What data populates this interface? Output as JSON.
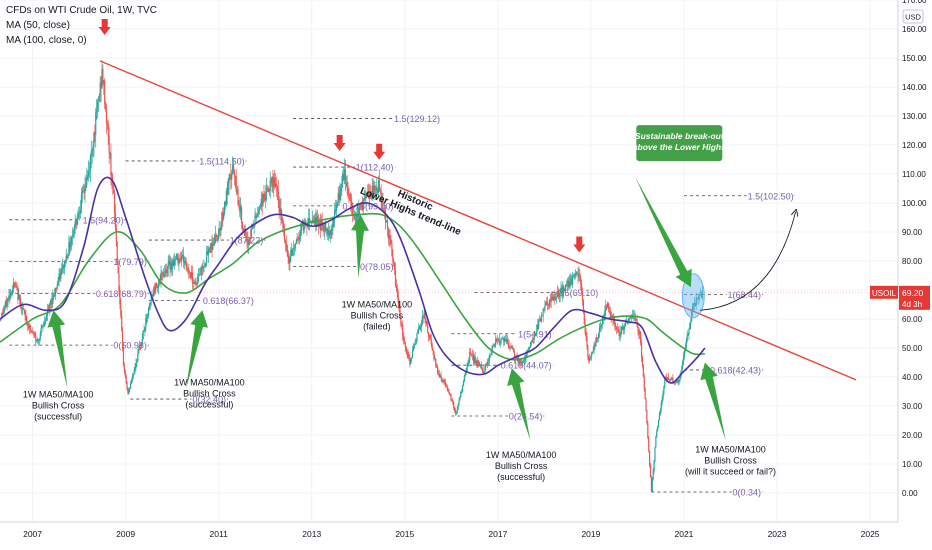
{
  "legend": {
    "title": "CFDs on WTI Crude Oil, 1W, TVC",
    "ma50": "MA (50, close)",
    "ma100": "MA (100, close, 0)"
  },
  "price_axis": {
    "unit_badge": "USD",
    "current_symbol": "USOIL",
    "current_price": "69.20",
    "countdown": "4d 3h"
  },
  "colors": {
    "candle_up": "#26a69a",
    "candle_down": "#ef5350",
    "ma50": "#4a2fa6",
    "ma100": "#3aa540",
    "trendline": "#e8453c",
    "fib": "#7b5fb0",
    "arrow_green": "#3aa540",
    "arrow_red": "#e53935",
    "callout_bg": "#43a047",
    "breakout_ellipse": "#64b5f6"
  },
  "chart_data": {
    "type": "candlestick",
    "title": "CFDs on WTI Crude Oil, 1W, TVC",
    "y_unit": "USD",
    "ylim": [
      -10,
      170
    ],
    "xlim": [
      2006.3,
      2025.6
    ],
    "x_ticks": [
      "2007",
      "2009",
      "2011",
      "2013",
      "2015",
      "2017",
      "2019",
      "2021",
      "2023",
      "2025"
    ],
    "y_ticks": [
      "170.00",
      "160.00",
      "150.00",
      "140.00",
      "130.00",
      "120.00",
      "110.00",
      "100.00",
      "90.00",
      "80.00",
      "70.00",
      "60.00",
      "50.00",
      "40.00",
      "30.00",
      "20.00",
      "10.00",
      "0.00"
    ],
    "price_path": [
      [
        2006.3,
        60
      ],
      [
        2006.6,
        72
      ],
      [
        2006.9,
        58
      ],
      [
        2007.1,
        52
      ],
      [
        2007.4,
        66
      ],
      [
        2007.7,
        80
      ],
      [
        2007.95,
        95
      ],
      [
        2008.2,
        110
      ],
      [
        2008.5,
        145
      ],
      [
        2008.75,
        100
      ],
      [
        2008.95,
        45
      ],
      [
        2009.05,
        34
      ],
      [
        2009.3,
        50
      ],
      [
        2009.6,
        70
      ],
      [
        2009.9,
        78
      ],
      [
        2010.2,
        82
      ],
      [
        2010.5,
        72
      ],
      [
        2010.8,
        84
      ],
      [
        2011.0,
        90
      ],
      [
        2011.3,
        112
      ],
      [
        2011.6,
        85
      ],
      [
        2011.9,
        100
      ],
      [
        2012.2,
        108
      ],
      [
        2012.5,
        80
      ],
      [
        2012.8,
        92
      ],
      [
        2013.0,
        95
      ],
      [
        2013.4,
        90
      ],
      [
        2013.7,
        110
      ],
      [
        2013.9,
        95
      ],
      [
        2014.2,
        102
      ],
      [
        2014.45,
        106
      ],
      [
        2014.7,
        85
      ],
      [
        2014.95,
        55
      ],
      [
        2015.1,
        45
      ],
      [
        2015.4,
        62
      ],
      [
        2015.7,
        42
      ],
      [
        2015.95,
        35
      ],
      [
        2016.1,
        27
      ],
      [
        2016.4,
        48
      ],
      [
        2016.7,
        42
      ],
      [
        2016.95,
        53
      ],
      [
        2017.2,
        52
      ],
      [
        2017.5,
        44
      ],
      [
        2017.8,
        55
      ],
      [
        2018.0,
        64
      ],
      [
        2018.4,
        70
      ],
      [
        2018.75,
        76
      ],
      [
        2018.95,
        45
      ],
      [
        2019.1,
        52
      ],
      [
        2019.35,
        65
      ],
      [
        2019.6,
        55
      ],
      [
        2019.9,
        62
      ],
      [
        2020.05,
        55
      ],
      [
        2020.2,
        25
      ],
      [
        2020.3,
        0.34
      ],
      [
        2020.4,
        20
      ],
      [
        2020.6,
        40
      ],
      [
        2020.9,
        38
      ],
      [
        2021.05,
        52
      ],
      [
        2021.2,
        65
      ],
      [
        2021.4,
        69.2
      ]
    ],
    "ma50": [
      [
        2006.3,
        60
      ],
      [
        2006.8,
        65
      ],
      [
        2007.3,
        63
      ],
      [
        2007.7,
        66
      ],
      [
        2008.1,
        85
      ],
      [
        2008.4,
        105
      ],
      [
        2008.7,
        108
      ],
      [
        2009.0,
        95
      ],
      [
        2009.4,
        75
      ],
      [
        2009.7,
        62
      ],
      [
        2009.95,
        56
      ],
      [
        2010.3,
        60
      ],
      [
        2010.7,
        72
      ],
      [
        2011.0,
        79
      ],
      [
        2011.4,
        88
      ],
      [
        2011.8,
        93
      ],
      [
        2012.2,
        96
      ],
      [
        2012.6,
        95
      ],
      [
        2013.0,
        92
      ],
      [
        2013.4,
        94
      ],
      [
        2013.8,
        98
      ],
      [
        2014.2,
        100
      ],
      [
        2014.6,
        96
      ],
      [
        2014.9,
        88
      ],
      [
        2015.3,
        70
      ],
      [
        2015.6,
        55
      ],
      [
        2015.9,
        47
      ],
      [
        2016.3,
        42
      ],
      [
        2016.7,
        41
      ],
      [
        2017.0,
        44
      ],
      [
        2017.4,
        47
      ],
      [
        2017.8,
        50
      ],
      [
        2018.2,
        57
      ],
      [
        2018.6,
        63
      ],
      [
        2019.0,
        62
      ],
      [
        2019.4,
        60
      ],
      [
        2019.8,
        59
      ],
      [
        2020.1,
        57
      ],
      [
        2020.4,
        45
      ],
      [
        2020.7,
        38
      ],
      [
        2021.0,
        42
      ],
      [
        2021.3,
        47
      ],
      [
        2021.45,
        50
      ]
    ],
    "ma100": [
      [
        2006.3,
        52
      ],
      [
        2007.0,
        60
      ],
      [
        2007.6,
        65
      ],
      [
        2008.2,
        80
      ],
      [
        2008.8,
        90
      ],
      [
        2009.3,
        84
      ],
      [
        2009.8,
        72
      ],
      [
        2010.3,
        69
      ],
      [
        2010.8,
        74
      ],
      [
        2011.3,
        79
      ],
      [
        2011.8,
        86
      ],
      [
        2012.3,
        90
      ],
      [
        2012.9,
        93
      ],
      [
        2013.5,
        95
      ],
      [
        2014.0,
        96
      ],
      [
        2014.5,
        96
      ],
      [
        2014.9,
        92
      ],
      [
        2015.3,
        84
      ],
      [
        2015.8,
        72
      ],
      [
        2016.3,
        60
      ],
      [
        2016.8,
        50
      ],
      [
        2017.3,
        46
      ],
      [
        2017.8,
        48
      ],
      [
        2018.3,
        53
      ],
      [
        2018.8,
        57
      ],
      [
        2019.3,
        60
      ],
      [
        2019.8,
        61
      ],
      [
        2020.2,
        60
      ],
      [
        2020.5,
        56
      ],
      [
        2020.9,
        51
      ],
      [
        2021.2,
        48
      ],
      [
        2021.45,
        48
      ]
    ],
    "trendline": [
      [
        2008.45,
        149
      ],
      [
        2024.7,
        39
      ]
    ],
    "fib_levels": [
      {
        "label": "1(79.79)",
        "y": 79.79,
        "x": [
          2006.5,
          2009.5
        ]
      },
      {
        "label": "0.618(68.79)",
        "y": 68.79,
        "x": [
          2006.5,
          2009.5
        ]
      },
      {
        "label": "0(50.98)",
        "y": 50.98,
        "x": [
          2006.5,
          2009.5
        ]
      },
      {
        "label": "1.5(94.20)",
        "y": 94.2,
        "x": [
          2006.5,
          2009.0
        ]
      },
      {
        "label": "1.5(114.50)",
        "y": 114.5,
        "x": [
          2009.0,
          2011.6
        ]
      },
      {
        "label": "1(87.22)",
        "y": 87.22,
        "x": [
          2009.5,
          2012.0
        ]
      },
      {
        "label": "0.618(66.37)",
        "y": 66.37,
        "x": [
          2009.5,
          2011.8
        ]
      },
      {
        "label": "0(32.40)",
        "y": 32.4,
        "x": [
          2009.1,
          2011.2
        ]
      },
      {
        "label": "1.5(129.12)",
        "y": 129.12,
        "x": [
          2012.6,
          2015.8
        ]
      },
      {
        "label": "1(112.40)",
        "y": 112.4,
        "x": [
          2012.6,
          2014.8
        ]
      },
      {
        "label": "0.618(99.00)",
        "y": 99.0,
        "x": [
          2012.6,
          2014.8
        ]
      },
      {
        "label": "0(78.05)",
        "y": 78.05,
        "x": [
          2012.6,
          2014.8
        ]
      },
      {
        "label": "1.5(69.10)",
        "y": 69.1,
        "x": [
          2016.5,
          2019.2
        ]
      },
      {
        "label": "1(54.91)",
        "y": 54.91,
        "x": [
          2016.0,
          2018.2
        ]
      },
      {
        "label": "0.618(44.07)",
        "y": 44.07,
        "x": [
          2016.0,
          2018.2
        ]
      },
      {
        "label": "0(26.54)",
        "y": 26.54,
        "x": [
          2016.0,
          2018.0
        ]
      },
      {
        "label": "1.5(102.50)",
        "y": 102.5,
        "x": [
          2021.0,
          2023.4
        ]
      },
      {
        "label": "1(68.44)",
        "y": 68.44,
        "x": [
          2021.0,
          2022.7
        ]
      },
      {
        "label": "0.618(42.43)",
        "y": 42.43,
        "x": [
          2021.0,
          2022.7
        ]
      },
      {
        "label": "0(0.34)",
        "y": 0.34,
        "x": [
          2020.3,
          2022.7
        ]
      }
    ],
    "red_arrows": [
      [
        2008.55,
        160
      ],
      [
        2013.6,
        120
      ],
      [
        2014.45,
        117
      ],
      [
        2018.75,
        85
      ]
    ],
    "green_arrows": [
      {
        "from": [
          2007.75,
          36
        ],
        "to": [
          2007.45,
          63
        ]
      },
      {
        "from": [
          2010.3,
          36
        ],
        "to": [
          2010.65,
          63
        ]
      },
      {
        "from": [
          2014.0,
          74
        ],
        "to": [
          2014.05,
          96
        ]
      },
      {
        "from": [
          2017.7,
          18
        ],
        "to": [
          2017.3,
          43
        ]
      },
      {
        "from": [
          2021.9,
          18
        ],
        "to": [
          2021.45,
          45
        ]
      },
      {
        "from": [
          2019.95,
          109
        ],
        "to": [
          2021.15,
          71
        ]
      }
    ],
    "annotations": [
      {
        "lines": [
          "1W MA50/MA100",
          "Bullish Cross",
          "(successful)"
        ],
        "x": 2007.55,
        "y": 33
      },
      {
        "lines": [
          "1W MA50/MA100",
          "Bullish Cross",
          "(successful)"
        ],
        "x": 2010.8,
        "y": 37
      },
      {
        "lines": [
          "1W MA50/MA100",
          "Bullish Cross",
          "(failed)"
        ],
        "x": 2014.4,
        "y": 64
      },
      {
        "lines": [
          "1W MA50/MA100",
          "Bullish Cross",
          "(successful)"
        ],
        "x": 2017.5,
        "y": 12
      },
      {
        "lines": [
          "1W MA50/MA100",
          "Bullish Cross",
          "(will it succeed or fail?)"
        ],
        "x": 2022.0,
        "y": 14
      }
    ],
    "trend_text": {
      "lines": [
        "Historic",
        "Lower Highs trend-line"
      ],
      "x": 2015.2,
      "y": 100
    },
    "callout": {
      "lines": [
        "Sustainable break-out",
        "above the Lower Highs"
      ],
      "x": 2020.9,
      "y": 121
    }
  }
}
